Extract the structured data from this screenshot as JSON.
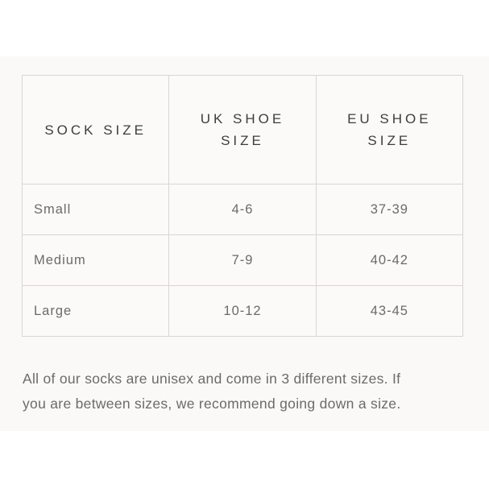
{
  "colors": {
    "page_background": "#ffffff",
    "panel_background": "#faf9f7",
    "table_border": "#d9d6d1",
    "header_text": "#3d3d3d",
    "body_text": "#6b6b6b"
  },
  "size_chart": {
    "columns": [
      {
        "label": "SOCK SIZE"
      },
      {
        "label": "UK SHOE SIZE"
      },
      {
        "label": "EU SHOE SIZE"
      }
    ],
    "rows": [
      {
        "sock": "Small",
        "uk": "4-6",
        "eu": "37-39"
      },
      {
        "sock": "Medium",
        "uk": "7-9",
        "eu": "40-42"
      },
      {
        "sock": "Large",
        "uk": "10-12",
        "eu": "43-45"
      }
    ]
  },
  "note": {
    "text": "All of our socks are unisex and come in 3 different sizes. If you are between sizes, we recommend going down a size."
  }
}
